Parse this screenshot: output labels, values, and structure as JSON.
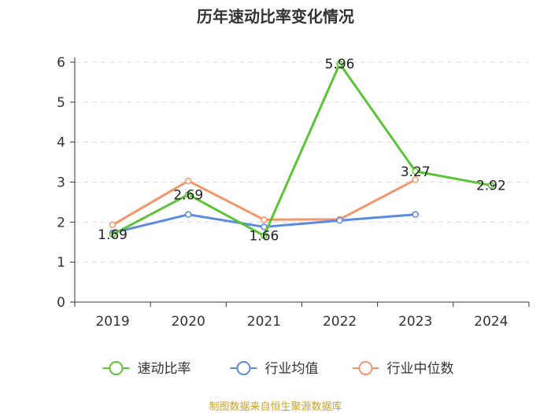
{
  "chart_data": {
    "type": "line",
    "title": "历年速动比率变化情况",
    "categories": [
      "2019",
      "2020",
      "2021",
      "2022",
      "2023",
      "2024"
    ],
    "ylim": [
      0,
      6
    ],
    "yticks": [
      "0",
      "1",
      "2",
      "3",
      "4",
      "5",
      "6"
    ],
    "grid": true,
    "legend_position": "bottom",
    "series": [
      {
        "name": "速动比率",
        "color": "#5dc337",
        "values": [
          1.69,
          2.69,
          1.66,
          5.96,
          3.27,
          2.92
        ],
        "labels": [
          "1.69",
          "2.69",
          "1.66",
          "5.96",
          "3.27",
          "2.92"
        ]
      },
      {
        "name": "行业均值",
        "color": "#5b8ae0",
        "values": [
          1.73,
          2.19,
          1.88,
          2.04,
          2.19,
          null
        ]
      },
      {
        "name": "行业中位数",
        "color": "#f4966b",
        "values": [
          1.93,
          3.03,
          2.06,
          2.07,
          3.06,
          null
        ]
      }
    ],
    "source": "制图数据来自恒生聚源数据库"
  }
}
